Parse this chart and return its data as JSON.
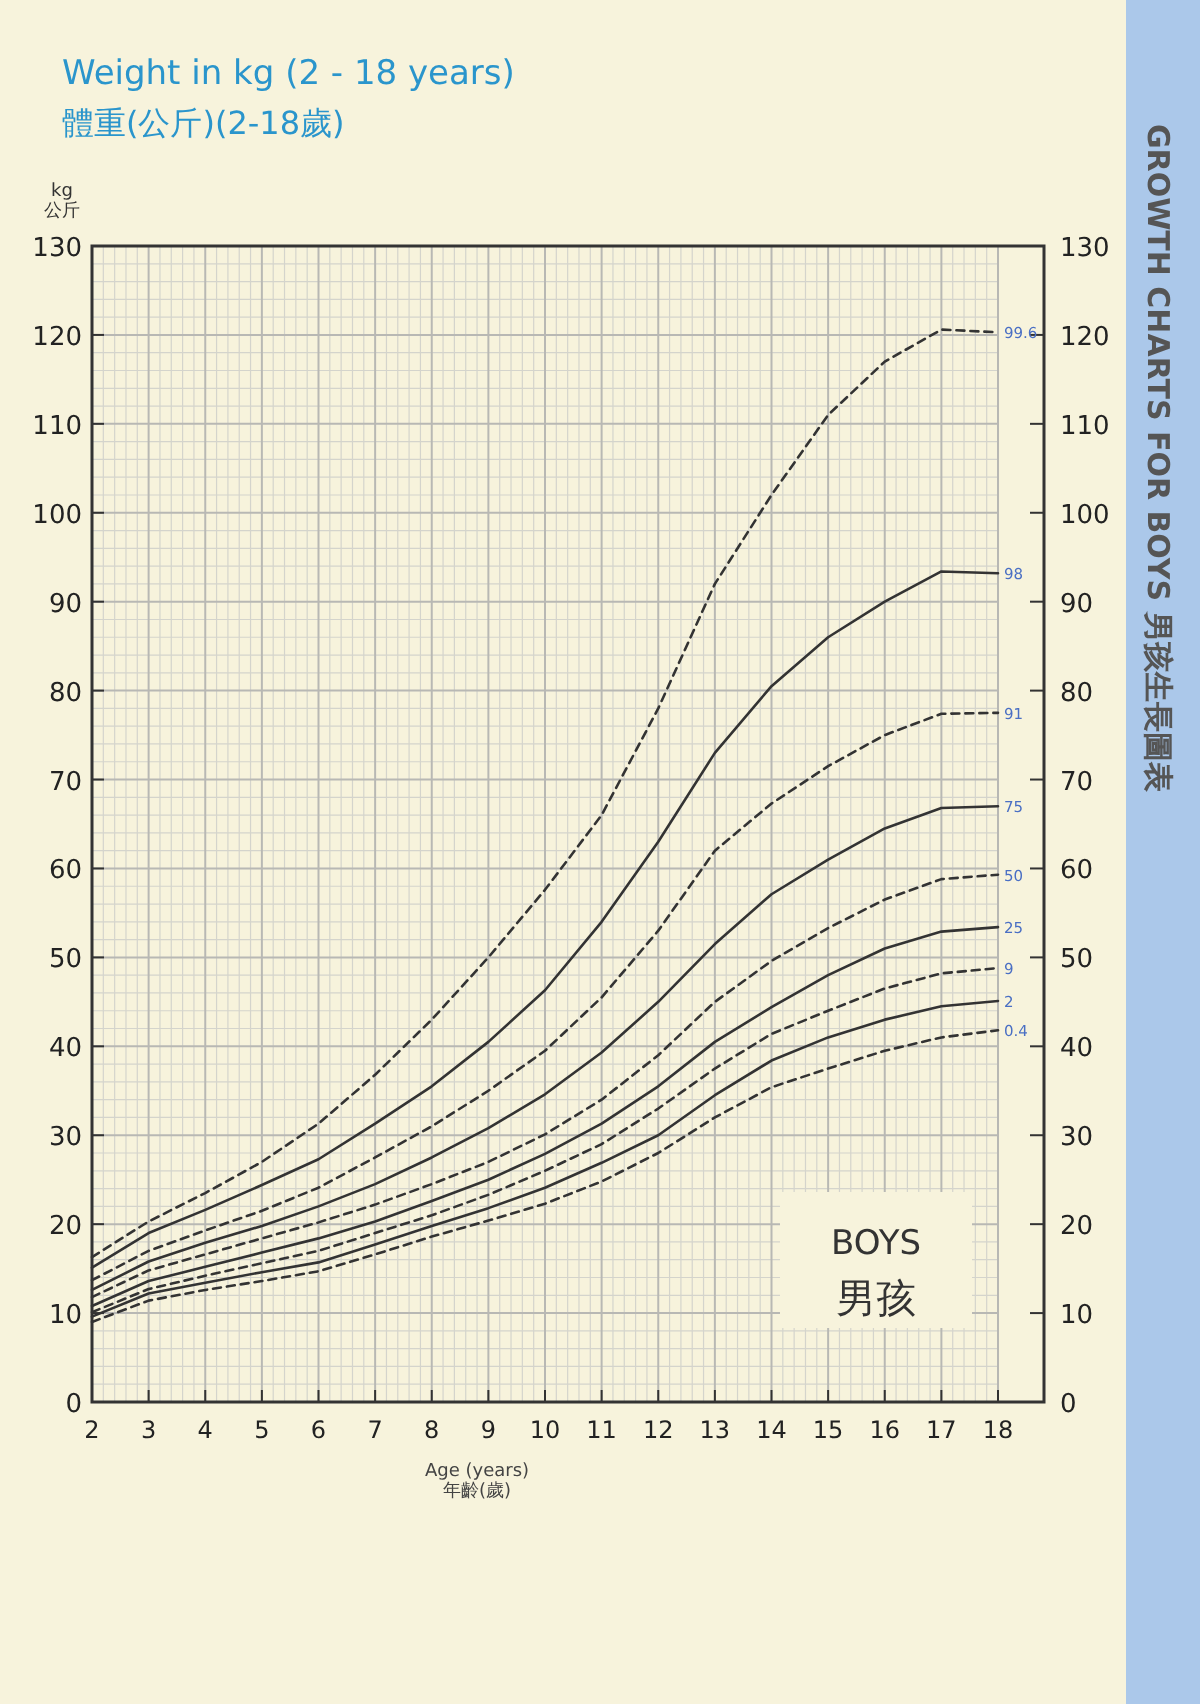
{
  "chart_data": {
    "type": "line",
    "title": "Weight in kg (2 - 18 years)",
    "subtitle": "體重(公斤)(2-18歲)",
    "xlabel": "Age (years)\n年齡(歲)",
    "ylabel": "kg\n公斤",
    "annotations": [
      "BOYS",
      "男孩",
      "GROWTH CHARTS FOR BOYS 男孩生長圖表"
    ],
    "x": [
      2,
      3,
      4,
      5,
      6,
      7,
      8,
      9,
      10,
      11,
      12,
      13,
      14,
      15,
      16,
      17,
      18
    ],
    "series": [
      {
        "name": "99.6",
        "color": "#333333",
        "line_style": "dashed",
        "values": [
          16.3,
          20.3,
          23.5,
          27,
          31.3,
          36.8,
          43,
          50,
          57.6,
          66,
          78,
          92,
          102,
          111,
          117,
          120.6,
          120.3
        ]
      },
      {
        "name": "98",
        "color": "#333333",
        "line_style": "solid",
        "values": [
          15.1,
          19,
          21.6,
          24.4,
          27.3,
          31.3,
          35.5,
          40.5,
          46.3,
          54,
          63,
          73,
          80.5,
          86,
          90,
          93.4,
          93.2
        ]
      },
      {
        "name": "91",
        "color": "#333333",
        "line_style": "dashed",
        "values": [
          13.7,
          17,
          19.3,
          21.5,
          24.1,
          27.5,
          31,
          35,
          39.5,
          45.5,
          53,
          62,
          67.3,
          71.5,
          75,
          77.4,
          77.5
        ]
      },
      {
        "name": "75",
        "color": "#333333",
        "line_style": "solid",
        "values": [
          12.6,
          15.8,
          17.9,
          19.8,
          22,
          24.5,
          27.5,
          30.8,
          34.6,
          39.3,
          45,
          51.5,
          57.1,
          61,
          64.5,
          66.8,
          67
        ]
      },
      {
        "name": "50",
        "color": "#333333",
        "line_style": "dashed",
        "values": [
          11.8,
          14.8,
          16.6,
          18.4,
          20.2,
          22.2,
          24.5,
          27,
          30.1,
          34,
          39,
          45,
          49.6,
          53.3,
          56.5,
          58.8,
          59.3
        ]
      },
      {
        "name": "25",
        "color": "#333333",
        "line_style": "solid",
        "values": [
          10.8,
          13.6,
          15.2,
          16.8,
          18.4,
          20.3,
          22.6,
          25,
          27.9,
          31.3,
          35.5,
          40.5,
          44.4,
          48,
          51,
          52.9,
          53.4
        ]
      },
      {
        "name": "9",
        "color": "#333333",
        "line_style": "dashed",
        "values": [
          10.1,
          12.7,
          14.2,
          15.6,
          17,
          19,
          21,
          23.3,
          26,
          29,
          33,
          37.5,
          41.4,
          44,
          46.5,
          48.2,
          48.8
        ]
      },
      {
        "name": "2",
        "color": "#333333",
        "line_style": "solid",
        "values": [
          9.6,
          12.2,
          13.4,
          14.6,
          15.7,
          17.7,
          19.8,
          21.8,
          24.1,
          26.9,
          30,
          34.5,
          38.4,
          41,
          43,
          44.5,
          45.1
        ]
      },
      {
        "name": "0.4",
        "color": "#333333",
        "line_style": "dashed",
        "values": [
          9,
          11.4,
          12.6,
          13.6,
          14.7,
          16.6,
          18.6,
          20.4,
          22.3,
          24.8,
          28,
          32,
          35.4,
          37.5,
          39.5,
          41,
          41.8
        ]
      }
    ],
    "xlim": [
      2,
      18
    ],
    "xticks": [
      2,
      3,
      4,
      5,
      6,
      7,
      8,
      9,
      10,
      11,
      12,
      13,
      14,
      15,
      16,
      17,
      18
    ],
    "ylim": [
      0,
      130
    ],
    "yticks": [
      0,
      10,
      20,
      30,
      40,
      50,
      60,
      70,
      80,
      90,
      100,
      110,
      120,
      130
    ],
    "y2lim": [
      0,
      130
    ],
    "y2ticks": [
      0,
      10,
      20,
      30,
      40,
      50,
      60,
      70,
      80,
      90,
      100,
      110,
      120,
      130
    ],
    "grid": true
  }
}
